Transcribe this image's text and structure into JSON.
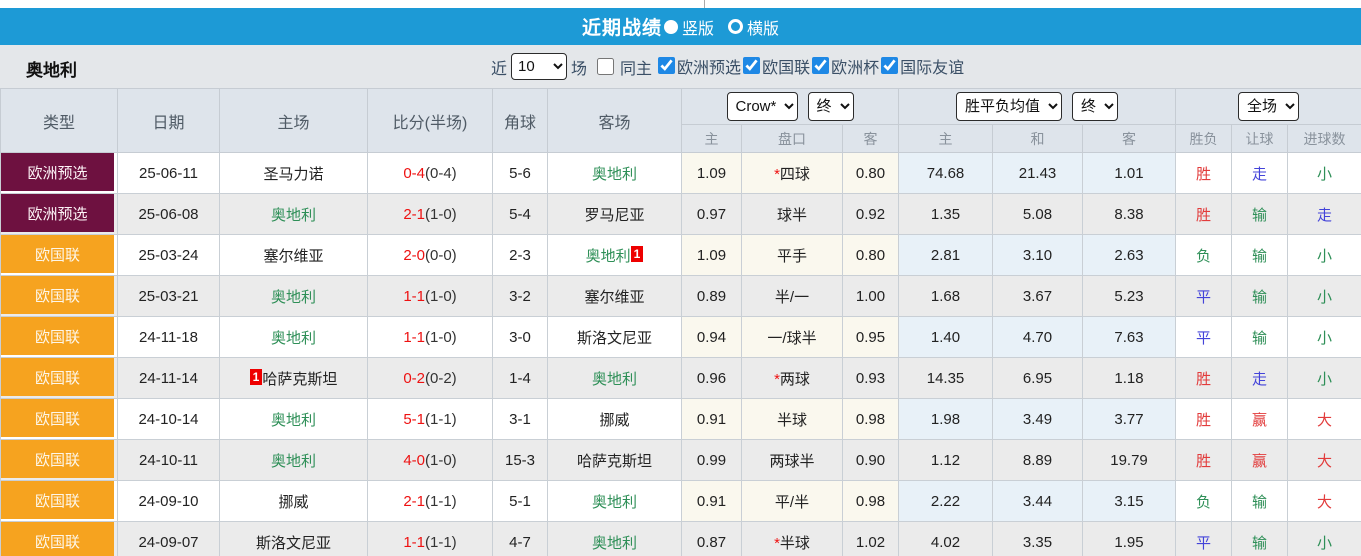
{
  "title_bar": {
    "title": "近期战绩",
    "layout_options": [
      {
        "label": "竖版",
        "selected": true
      },
      {
        "label": "横版",
        "selected": false
      }
    ]
  },
  "filter_bar": {
    "team": "奥地利",
    "recent_label": "近",
    "count_value": "10",
    "matches_label": "场",
    "same_home": {
      "label": "同主",
      "checked": false
    },
    "competitions": [
      {
        "label": "欧洲预选",
        "checked": true
      },
      {
        "label": "欧国联",
        "checked": true
      },
      {
        "label": "欧洲杯",
        "checked": true
      },
      {
        "label": "国际友谊",
        "checked": true
      }
    ]
  },
  "table": {
    "headers_left": [
      "类型",
      "日期",
      "主场",
      "比分(半场)",
      "角球",
      "客场"
    ],
    "dropdowns": {
      "odds_company": "Crow*",
      "odds_time": "终",
      "avg_type": "胜平负均值",
      "avg_time": "终",
      "scope": "全场"
    },
    "subheaders": [
      "主",
      "盘口",
      "客",
      "主",
      "和",
      "客",
      "胜负",
      "让球",
      "进球数"
    ],
    "result_color_map": {
      "胜": "red",
      "赢": "red",
      "大": "red",
      "负": "green",
      "输": "green",
      "小": "green",
      "平": "blue",
      "走": "blue"
    },
    "rows": [
      {
        "type": "欧洲预选",
        "type_style": "maroon",
        "date": "25-06-11",
        "home": "圣马力诺",
        "home_focus": false,
        "home_badge": "",
        "score": "0-4",
        "half": "(0-4)",
        "corner": "5-6",
        "away": "奥地利",
        "away_focus": true,
        "away_badge": "",
        "odds_home": "1.09",
        "handicap": "*四球",
        "odds_away": "0.80",
        "avg_home": "74.68",
        "avg_draw": "21.43",
        "avg_away": "1.01",
        "result": "胜",
        "handicap_result": "走",
        "goals_result": "小"
      },
      {
        "type": "欧洲预选",
        "type_style": "maroon",
        "date": "25-06-08",
        "home": "奥地利",
        "home_focus": true,
        "home_badge": "",
        "score": "2-1",
        "half": "(1-0)",
        "corner": "5-4",
        "away": "罗马尼亚",
        "away_focus": false,
        "away_badge": "",
        "odds_home": "0.97",
        "handicap": "球半",
        "odds_away": "0.92",
        "avg_home": "1.35",
        "avg_draw": "5.08",
        "avg_away": "8.38",
        "result": "胜",
        "handicap_result": "输",
        "goals_result": "走"
      },
      {
        "type": "欧国联",
        "type_style": "orange",
        "date": "25-03-24",
        "home": "塞尔维亚",
        "home_focus": false,
        "home_badge": "",
        "score": "2-0",
        "half": "(0-0)",
        "corner": "2-3",
        "away": "奥地利",
        "away_focus": true,
        "away_badge": "1",
        "odds_home": "1.09",
        "handicap": "平手",
        "odds_away": "0.80",
        "avg_home": "2.81",
        "avg_draw": "3.10",
        "avg_away": "2.63",
        "result": "负",
        "handicap_result": "输",
        "goals_result": "小"
      },
      {
        "type": "欧国联",
        "type_style": "orange",
        "date": "25-03-21",
        "home": "奥地利",
        "home_focus": true,
        "home_badge": "",
        "score": "1-1",
        "half": "(1-0)",
        "corner": "3-2",
        "away": "塞尔维亚",
        "away_focus": false,
        "away_badge": "",
        "odds_home": "0.89",
        "handicap": "半/一",
        "odds_away": "1.00",
        "avg_home": "1.68",
        "avg_draw": "3.67",
        "avg_away": "5.23",
        "result": "平",
        "handicap_result": "输",
        "goals_result": "小"
      },
      {
        "type": "欧国联",
        "type_style": "orange",
        "date": "24-11-18",
        "home": "奥地利",
        "home_focus": true,
        "home_badge": "",
        "score": "1-1",
        "half": "(1-0)",
        "corner": "3-0",
        "away": "斯洛文尼亚",
        "away_focus": false,
        "away_badge": "",
        "odds_home": "0.94",
        "handicap": "一/球半",
        "odds_away": "0.95",
        "avg_home": "1.40",
        "avg_draw": "4.70",
        "avg_away": "7.63",
        "result": "平",
        "handicap_result": "输",
        "goals_result": "小"
      },
      {
        "type": "欧国联",
        "type_style": "orange",
        "date": "24-11-14",
        "home": "哈萨克斯坦",
        "home_focus": false,
        "home_badge": "1",
        "score": "0-2",
        "half": "(0-2)",
        "corner": "1-4",
        "away": "奥地利",
        "away_focus": true,
        "away_badge": "",
        "odds_home": "0.96",
        "handicap": "*两球",
        "odds_away": "0.93",
        "avg_home": "14.35",
        "avg_draw": "6.95",
        "avg_away": "1.18",
        "result": "胜",
        "handicap_result": "走",
        "goals_result": "小"
      },
      {
        "type": "欧国联",
        "type_style": "orange",
        "date": "24-10-14",
        "home": "奥地利",
        "home_focus": true,
        "home_badge": "",
        "score": "5-1",
        "half": "(1-1)",
        "corner": "3-1",
        "away": "挪威",
        "away_focus": false,
        "away_badge": "",
        "odds_home": "0.91",
        "handicap": "半球",
        "odds_away": "0.98",
        "avg_home": "1.98",
        "avg_draw": "3.49",
        "avg_away": "3.77",
        "result": "胜",
        "handicap_result": "赢",
        "goals_result": "大"
      },
      {
        "type": "欧国联",
        "type_style": "orange",
        "date": "24-10-11",
        "home": "奥地利",
        "home_focus": true,
        "home_badge": "",
        "score": "4-0",
        "half": "(1-0)",
        "corner": "15-3",
        "away": "哈萨克斯坦",
        "away_focus": false,
        "away_badge": "",
        "odds_home": "0.99",
        "handicap": "两球半",
        "odds_away": "0.90",
        "avg_home": "1.12",
        "avg_draw": "8.89",
        "avg_away": "19.79",
        "result": "胜",
        "handicap_result": "赢",
        "goals_result": "大"
      },
      {
        "type": "欧国联",
        "type_style": "orange",
        "date": "24-09-10",
        "home": "挪威",
        "home_focus": false,
        "home_badge": "",
        "score": "2-1",
        "half": "(1-1)",
        "corner": "5-1",
        "away": "奥地利",
        "away_focus": true,
        "away_badge": "",
        "odds_home": "0.91",
        "handicap": "平/半",
        "odds_away": "0.98",
        "avg_home": "2.22",
        "avg_draw": "3.44",
        "avg_away": "3.15",
        "result": "负",
        "handicap_result": "输",
        "goals_result": "大"
      },
      {
        "type": "欧国联",
        "type_style": "orange",
        "date": "24-09-07",
        "home": "斯洛文尼亚",
        "home_focus": false,
        "home_badge": "",
        "score": "1-1",
        "half": "(1-1)",
        "corner": "4-7",
        "away": "奥地利",
        "away_focus": true,
        "away_badge": "",
        "odds_home": "0.87",
        "handicap": "*半球",
        "odds_away": "1.02",
        "avg_home": "4.02",
        "avg_draw": "3.35",
        "avg_away": "1.95",
        "result": "平",
        "handicap_result": "输",
        "goals_result": "小"
      }
    ]
  },
  "colors": {
    "title_bar_blue": "#1d9ad6",
    "filter_bar_bg": "#e4e7ea",
    "table_header_bg": "#dee4eb",
    "alt_row_bg": "#ebebeb",
    "odds_col_bg": "#faf8ee",
    "avg_col_bg": "#e8f1f8",
    "type_maroon": "#6e1140",
    "type_orange": "#f6a31f",
    "focus_team_green": "#2e8f57",
    "score_red": "#ee1111",
    "result_red": "#e23b3b",
    "result_green": "#2e8f57",
    "result_blue": "#4343d9",
    "checkbox_accent": "#1e88e5"
  }
}
